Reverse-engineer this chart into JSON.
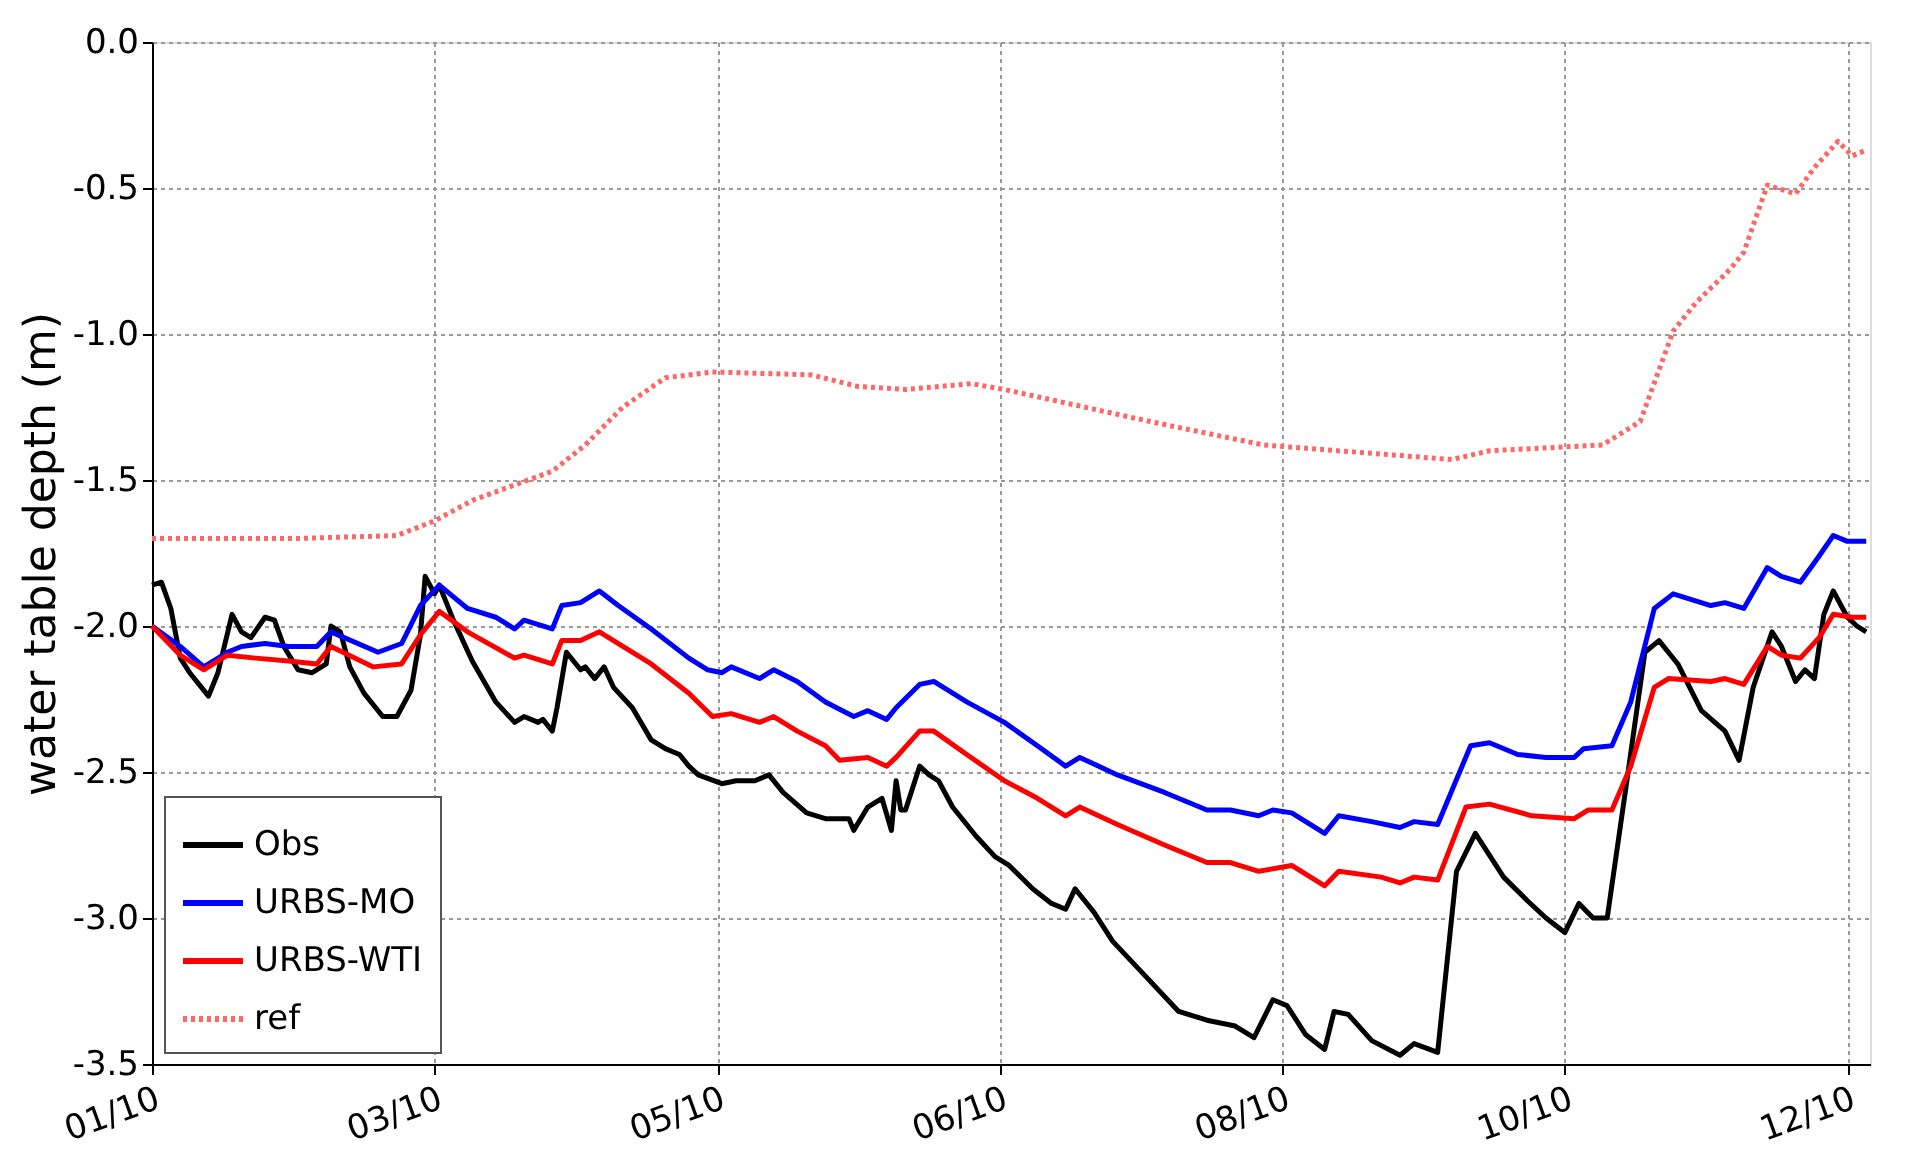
{
  "chart_data": {
    "type": "line",
    "ylabel": "water table depth (m)",
    "xlim": [
      "2010-01-01",
      "2010-12-31T19:12"
    ],
    "xticks": [
      {
        "value": "2010-01-01",
        "label": "01/10"
      },
      {
        "value": "2010-03-02",
        "label": "03/10"
      },
      {
        "value": "2010-05-01",
        "label": "05/10"
      },
      {
        "value": "2010-06-30",
        "label": "06/10"
      },
      {
        "value": "2010-08-29",
        "label": "08/10"
      },
      {
        "value": "2010-10-28",
        "label": "10/10"
      },
      {
        "value": "2010-12-27",
        "label": "12/10"
      }
    ],
    "ylim": [
      -3.5,
      0
    ],
    "yticks": [
      {
        "value": -3.5,
        "label": "-3.5"
      },
      {
        "value": -3,
        "label": "-3.0"
      },
      {
        "value": -2.5,
        "label": "-2.5"
      },
      {
        "value": -2,
        "label": "-2.0"
      },
      {
        "value": -1.5,
        "label": "-1.5"
      },
      {
        "value": -1,
        "label": "-1.0"
      },
      {
        "value": -0.5,
        "label": "-0.5"
      },
      {
        "value": 0,
        "label": "0.0"
      }
    ],
    "grid": true,
    "legend": "bottom left",
    "marker": "none",
    "series": [
      {
        "name": "Obs",
        "color": "#000000",
        "line_style": "solid",
        "x": [
          "2010-01-01",
          "2010-01-03",
          "2010-01-05",
          "2010-01-07",
          "2010-01-09",
          "2010-01-13",
          "2010-01-15",
          "2010-01-18",
          "2010-01-20",
          "2010-01-22",
          "2010-01-25",
          "2010-01-27",
          "2010-01-29",
          "2010-02-01",
          "2010-02-04",
          "2010-02-07",
          "2010-02-08",
          "2010-02-10",
          "2010-02-12",
          "2010-02-15",
          "2010-02-19",
          "2010-02-22",
          "2010-02-25",
          "2010-02-27",
          "2010-02-28",
          "2010-03-02",
          "2010-03-03",
          "2010-03-06",
          "2010-03-10",
          "2010-03-15",
          "2010-03-19",
          "2010-03-21",
          "2010-03-24",
          "2010-03-25",
          "2010-03-27",
          "2010-03-28",
          "2010-03-30",
          "2010-04-02",
          "2010-04-03",
          "2010-04-05",
          "2010-04-07",
          "2010-04-09",
          "2010-04-13",
          "2010-04-17",
          "2010-04-20",
          "2010-04-23",
          "2010-04-25",
          "2010-04-27",
          "2010-05-02",
          "2010-05-05",
          "2010-05-09",
          "2010-05-12",
          "2010-05-15",
          "2010-05-20",
          "2010-05-24",
          "2010-05-29",
          "2010-05-30",
          "2010-06-02",
          "2010-06-05",
          "2010-06-07",
          "2010-06-08",
          "2010-06-09",
          "2010-06-10",
          "2010-06-13",
          "2010-06-15",
          "2010-06-17",
          "2010-06-20",
          "2010-06-25",
          "2010-06-29",
          "2010-07-02",
          "2010-07-07",
          "2010-07-11",
          "2010-07-14",
          "2010-07-16",
          "2010-07-20",
          "2010-07-24",
          "2010-07-31",
          "2010-08-07",
          "2010-08-13",
          "2010-08-19",
          "2010-08-23",
          "2010-08-27",
          "2010-08-30",
          "2010-09-03",
          "2010-09-07",
          "2010-09-09",
          "2010-09-12",
          "2010-09-17",
          "2010-09-23",
          "2010-09-26",
          "2010-10-01",
          "2010-10-05",
          "2010-10-09",
          "2010-10-15",
          "2010-10-20",
          "2010-10-24",
          "2010-10-28",
          "2010-10-31",
          "2010-11-03",
          "2010-11-06",
          "2010-11-10",
          "2010-11-14",
          "2010-11-17",
          "2010-11-21",
          "2010-11-26",
          "2010-12-01",
          "2010-12-04",
          "2010-12-07",
          "2010-12-11",
          "2010-12-13",
          "2010-12-16",
          "2010-12-18",
          "2010-12-20",
          "2010-12-22",
          "2010-12-24",
          "2010-12-27",
          "2010-12-29",
          "2010-12-31"
        ],
        "values": [
          -1.86,
          -1.85,
          -1.94,
          -2.11,
          -2.16,
          -2.24,
          -2.16,
          -1.96,
          -2.02,
          -2.04,
          -1.97,
          -1.98,
          -2.07,
          -2.15,
          -2.16,
          -2.13,
          -2.0,
          -2.02,
          -2.14,
          -2.23,
          -2.31,
          -2.31,
          -2.22,
          -2.03,
          -1.83,
          -1.89,
          -1.86,
          -1.98,
          -2.12,
          -2.26,
          -2.33,
          -2.31,
          -2.33,
          -2.32,
          -2.36,
          -2.28,
          -2.09,
          -2.15,
          -2.14,
          -2.18,
          -2.14,
          -2.21,
          -2.28,
          -2.39,
          -2.42,
          -2.44,
          -2.48,
          -2.51,
          -2.54,
          -2.53,
          -2.53,
          -2.51,
          -2.57,
          -2.64,
          -2.66,
          -2.66,
          -2.7,
          -2.62,
          -2.59,
          -2.7,
          -2.53,
          -2.63,
          -2.63,
          -2.48,
          -2.51,
          -2.53,
          -2.62,
          -2.72,
          -2.79,
          -2.82,
          -2.9,
          -2.95,
          -2.97,
          -2.9,
          -2.98,
          -3.08,
          -3.2,
          -3.32,
          -3.35,
          -3.37,
          -3.41,
          -3.28,
          -3.3,
          -3.4,
          -3.45,
          -3.32,
          -3.33,
          -3.42,
          -3.47,
          -3.43,
          -3.46,
          -2.84,
          -2.71,
          -2.86,
          -2.94,
          -3.0,
          -3.05,
          -2.95,
          -3.0,
          -3.0,
          -2.55,
          -2.09,
          -2.05,
          -2.13,
          -2.29,
          -2.36,
          -2.46,
          -2.21,
          -2.02,
          -2.07,
          -2.19,
          -2.15,
          -2.18,
          -1.96,
          -1.88,
          -1.97,
          -2.0,
          -2.02
        ]
      },
      {
        "name": "URBS-MO",
        "color": "#0000ff",
        "line_style": "solid",
        "x": [
          "2010-01-01",
          "2010-01-07",
          "2010-01-12",
          "2010-01-17",
          "2010-01-20",
          "2010-01-25",
          "2010-01-30",
          "2010-02-05",
          "2010-02-08",
          "2010-02-18",
          "2010-02-23",
          "2010-02-27",
          "2010-03-03",
          "2010-03-09",
          "2010-03-15",
          "2010-03-19",
          "2010-03-21",
          "2010-03-27",
          "2010-03-29",
          "2010-04-02",
          "2010-04-06",
          "2010-04-10",
          "2010-04-17",
          "2010-04-25",
          "2010-04-29",
          "2010-05-02",
          "2010-05-04",
          "2010-05-10",
          "2010-05-13",
          "2010-05-18",
          "2010-05-24",
          "2010-05-30",
          "2010-06-02",
          "2010-06-06",
          "2010-06-08",
          "2010-06-13",
          "2010-06-16",
          "2010-06-23",
          "2010-07-01",
          "2010-07-08",
          "2010-07-14",
          "2010-07-17",
          "2010-07-25",
          "2010-08-04",
          "2010-08-13",
          "2010-08-18",
          "2010-08-24",
          "2010-08-27",
          "2010-08-31",
          "2010-09-07",
          "2010-09-10",
          "2010-09-17",
          "2010-09-23",
          "2010-09-26",
          "2010-10-01",
          "2010-10-08",
          "2010-10-12",
          "2010-10-18",
          "2010-10-24",
          "2010-10-30",
          "2010-11-01",
          "2010-11-07",
          "2010-11-11",
          "2010-11-16",
          "2010-11-20",
          "2010-11-28",
          "2010-12-01",
          "2010-12-05",
          "2010-12-10",
          "2010-12-13",
          "2010-12-17",
          "2010-12-21",
          "2010-12-24",
          "2010-12-27",
          "2010-12-31"
        ],
        "values": [
          -2.0,
          -2.07,
          -2.14,
          -2.09,
          -2.07,
          -2.06,
          -2.07,
          -2.07,
          -2.02,
          -2.09,
          -2.06,
          -1.93,
          -1.86,
          -1.94,
          -1.97,
          -2.01,
          -1.98,
          -2.01,
          -1.93,
          -1.92,
          -1.88,
          -1.93,
          -2.01,
          -2.11,
          -2.15,
          -2.16,
          -2.14,
          -2.18,
          -2.15,
          -2.19,
          -2.26,
          -2.31,
          -2.29,
          -2.32,
          -2.28,
          -2.2,
          -2.19,
          -2.26,
          -2.33,
          -2.41,
          -2.48,
          -2.45,
          -2.51,
          -2.57,
          -2.63,
          -2.63,
          -2.65,
          -2.63,
          -2.64,
          -2.71,
          -2.65,
          -2.67,
          -2.69,
          -2.67,
          -2.68,
          -2.41,
          -2.4,
          -2.44,
          -2.45,
          -2.45,
          -2.42,
          -2.41,
          -2.26,
          -1.94,
          -1.89,
          -1.93,
          -1.92,
          -1.94,
          -1.8,
          -1.83,
          -1.85,
          -1.76,
          -1.69,
          -1.71,
          -1.71
        ]
      },
      {
        "name": "URBS-WTI",
        "color": "#ff0000",
        "line_style": "solid",
        "x": [
          "2010-01-01",
          "2010-01-07",
          "2010-01-12",
          "2010-01-17",
          "2010-01-23",
          "2010-01-30",
          "2010-02-05",
          "2010-02-08",
          "2010-02-17",
          "2010-02-23",
          "2010-02-27",
          "2010-03-03",
          "2010-03-09",
          "2010-03-19",
          "2010-03-21",
          "2010-03-27",
          "2010-03-29",
          "2010-04-02",
          "2010-04-06",
          "2010-04-17",
          "2010-04-25",
          "2010-04-30",
          "2010-05-04",
          "2010-05-10",
          "2010-05-13",
          "2010-05-18",
          "2010-05-24",
          "2010-05-27",
          "2010-06-02",
          "2010-06-06",
          "2010-06-08",
          "2010-06-13",
          "2010-06-16",
          "2010-06-23",
          "2010-07-01",
          "2010-07-08",
          "2010-07-14",
          "2010-07-17",
          "2010-07-25",
          "2010-08-04",
          "2010-08-13",
          "2010-08-18",
          "2010-08-24",
          "2010-08-31",
          "2010-09-07",
          "2010-09-10",
          "2010-09-19",
          "2010-09-23",
          "2010-09-26",
          "2010-10-01",
          "2010-10-07",
          "2010-10-12",
          "2010-10-21",
          "2010-10-30",
          "2010-11-02",
          "2010-11-07",
          "2010-11-11",
          "2010-11-16",
          "2010-11-19",
          "2010-11-28",
          "2010-12-01",
          "2010-12-05",
          "2010-12-10",
          "2010-12-13",
          "2010-12-17",
          "2010-12-21",
          "2010-12-24",
          "2010-12-28",
          "2010-12-31"
        ],
        "values": [
          -2.0,
          -2.1,
          -2.15,
          -2.1,
          -2.11,
          -2.12,
          -2.13,
          -2.07,
          -2.14,
          -2.13,
          -2.03,
          -1.95,
          -2.02,
          -2.11,
          -2.1,
          -2.13,
          -2.05,
          -2.05,
          -2.02,
          -2.13,
          -2.23,
          -2.31,
          -2.3,
          -2.33,
          -2.31,
          -2.36,
          -2.41,
          -2.46,
          -2.45,
          -2.48,
          -2.45,
          -2.36,
          -2.36,
          -2.44,
          -2.53,
          -2.59,
          -2.65,
          -2.62,
          -2.68,
          -2.75,
          -2.81,
          -2.81,
          -2.84,
          -2.82,
          -2.89,
          -2.84,
          -2.86,
          -2.88,
          -2.86,
          -2.87,
          -2.62,
          -2.61,
          -2.65,
          -2.66,
          -2.63,
          -2.63,
          -2.48,
          -2.21,
          -2.18,
          -2.19,
          -2.18,
          -2.2,
          -2.07,
          -2.1,
          -2.11,
          -2.04,
          -1.96,
          -1.97,
          -1.97
        ]
      },
      {
        "name": "ref",
        "color": "#ff6666",
        "line_style": "dotted",
        "x": [
          "2010-01-01",
          "2010-02-02",
          "2010-02-22",
          "2010-03-02",
          "2010-03-10",
          "2010-03-27",
          "2010-04-03",
          "2010-04-11",
          "2010-04-20",
          "2010-04-30",
          "2010-05-21",
          "2010-05-31",
          "2010-06-10",
          "2010-06-24",
          "2010-07-01",
          "2010-08-01",
          "2010-08-25",
          "2010-09-18",
          "2010-10-04",
          "2010-10-12",
          "2010-11-05",
          "2010-11-13",
          "2010-11-20",
          "2010-11-25",
          "2010-12-02",
          "2010-12-05",
          "2010-12-10",
          "2010-12-16",
          "2010-12-20",
          "2010-12-25",
          "2010-12-28",
          "2010-12-31"
        ],
        "values": [
          -1.7,
          -1.7,
          -1.69,
          -1.64,
          -1.57,
          -1.47,
          -1.38,
          -1.25,
          -1.15,
          -1.13,
          -1.14,
          -1.18,
          -1.19,
          -1.17,
          -1.19,
          -1.3,
          -1.38,
          -1.41,
          -1.43,
          -1.4,
          -1.38,
          -1.3,
          -0.99,
          -0.89,
          -0.78,
          -0.72,
          -0.49,
          -0.52,
          -0.43,
          -0.34,
          -0.39,
          -0.37
        ]
      }
    ]
  }
}
